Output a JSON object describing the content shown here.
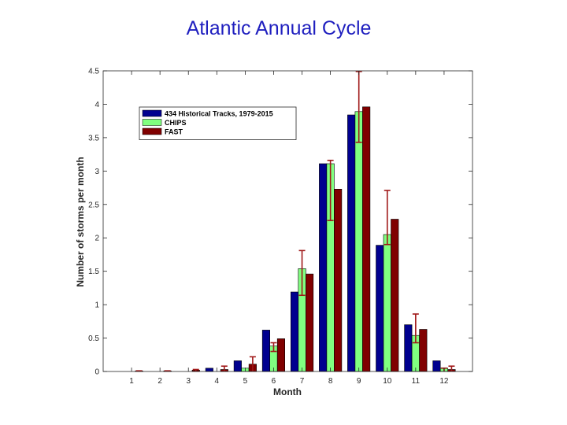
{
  "slide": {
    "title": "Atlantic Annual Cycle"
  },
  "chart_data": {
    "type": "bar",
    "title": "",
    "xlabel": "Month",
    "ylabel": "Number of storms per month",
    "categories": [
      "1",
      "2",
      "3",
      "4",
      "5",
      "6",
      "7",
      "8",
      "9",
      "10",
      "11",
      "12"
    ],
    "ylim": [
      0,
      4.5
    ],
    "yticks": [
      "0",
      "0.5",
      "1",
      "1.5",
      "2",
      "2.5",
      "3",
      "3.5",
      "4",
      "4.5"
    ],
    "grid": false,
    "legend_position": "top-left",
    "series": [
      {
        "name": "434 Historical Tracks, 1979-2015",
        "color": "#00008f",
        "values": [
          0,
          0,
          0,
          0.05,
          0.16,
          0.62,
          1.19,
          3.11,
          3.84,
          1.89,
          0.7,
          0.16
        ]
      },
      {
        "name": "CHIPS",
        "color": "#80ff80",
        "values": [
          0,
          0,
          0,
          0,
          0.05,
          0.38,
          1.54,
          3.11,
          3.89,
          2.05,
          0.54,
          0.05
        ],
        "error": [
          [
            0,
            0
          ],
          [
            0,
            0
          ],
          [
            0,
            0
          ],
          [
            0,
            0
          ],
          [
            0,
            0
          ],
          [
            0.3,
            0.43
          ],
          [
            1.14,
            1.81
          ],
          [
            2.26,
            3.16
          ],
          [
            3.43,
            4.49
          ],
          [
            1.9,
            2.71
          ],
          [
            0.43,
            0.86
          ],
          [
            0,
            0.05
          ]
        ]
      },
      {
        "name": "FAST",
        "color": "#800000",
        "values": [
          0.01,
          0.01,
          0.02,
          0.03,
          0.11,
          0.49,
          1.46,
          2.73,
          3.96,
          2.28,
          0.63,
          0.03
        ],
        "error": [
          [
            0,
            0.01
          ],
          [
            0,
            0.01
          ],
          [
            0,
            0.03
          ],
          [
            0,
            0.08
          ],
          [
            0,
            0.22
          ],
          [
            0,
            0
          ],
          [
            0,
            0
          ],
          [
            0,
            0
          ],
          [
            0,
            0
          ],
          [
            0,
            0
          ],
          [
            0,
            0
          ],
          [
            0,
            0.08
          ]
        ]
      }
    ]
  }
}
